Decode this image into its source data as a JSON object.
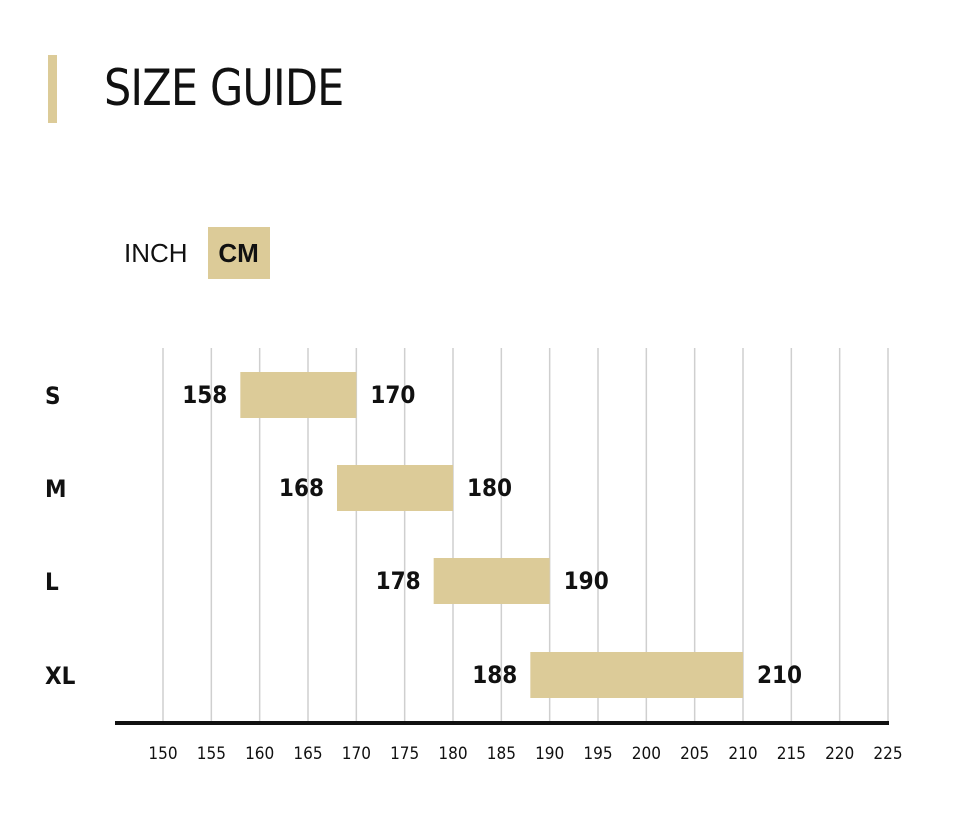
{
  "header": {
    "title": "SIZE GUIDE"
  },
  "unit_toggle": {
    "options": [
      "INCH",
      "CM"
    ],
    "selected": "CM"
  },
  "colors": {
    "accent": "#dccb98",
    "grid": "#cfcfcf",
    "axis": "#111111",
    "text": "#111111"
  },
  "chart_data": {
    "type": "bar",
    "orientation": "horizontal-range",
    "title": "",
    "xlabel": "",
    "ylabel": "",
    "categories": [
      "S",
      "M",
      "L",
      "XL"
    ],
    "series": [
      {
        "values": [
          {
            "size": "S",
            "min": 158,
            "max": 170
          },
          {
            "size": "M",
            "min": 168,
            "max": 180
          },
          {
            "size": "L",
            "min": 178,
            "max": 190
          },
          {
            "size": "XL",
            "min": 188,
            "max": 210
          }
        ]
      }
    ],
    "xlim": [
      150,
      225
    ],
    "xticks": [
      150,
      155,
      160,
      165,
      170,
      175,
      180,
      185,
      190,
      195,
      200,
      205,
      210,
      215,
      220,
      225
    ],
    "grid": true,
    "legend": "none"
  }
}
